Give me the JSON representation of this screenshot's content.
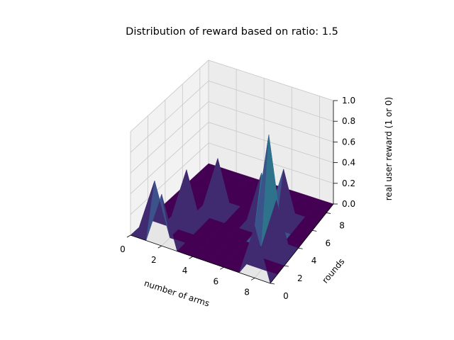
{
  "chart_data": {
    "type": "surface",
    "title": "Distribution of reward based on ratio: 1.5",
    "xlabel": "number of arms",
    "ylabel": "rounds",
    "zlabel": "real user reward (1 or 0)",
    "x_ticks": [
      "0",
      "2",
      "4",
      "6",
      "8"
    ],
    "y_ticks": [
      "0",
      "2",
      "4",
      "6",
      "8"
    ],
    "z_ticks": [
      "0.0",
      "0.2",
      "0.4",
      "0.6",
      "0.8",
      "1.0"
    ],
    "xlim": [
      0,
      9
    ],
    "ylim": [
      0,
      9
    ],
    "zlim": [
      0,
      1
    ],
    "grid": true,
    "colormap": "viridis",
    "colors": {
      "low": "#440154",
      "mid": "#21918c",
      "high": "#fde725"
    },
    "peaks": [
      {
        "x": 1,
        "y": 1,
        "z": 0.5
      },
      {
        "x": 2,
        "y": 0,
        "z": 0.5
      },
      {
        "x": 2,
        "y": 3,
        "z": 0.5
      },
      {
        "x": 3,
        "y": 5,
        "z": 0.5
      },
      {
        "x": 6,
        "y": 5,
        "z": 0.5
      },
      {
        "x": 7,
        "y": 6,
        "z": 0.5
      },
      {
        "x": 7,
        "y": 4,
        "z": 1.0
      },
      {
        "x": 8,
        "y": 3,
        "z": 0.5
      },
      {
        "x": 8,
        "y": 0,
        "z": 0.5
      }
    ]
  }
}
